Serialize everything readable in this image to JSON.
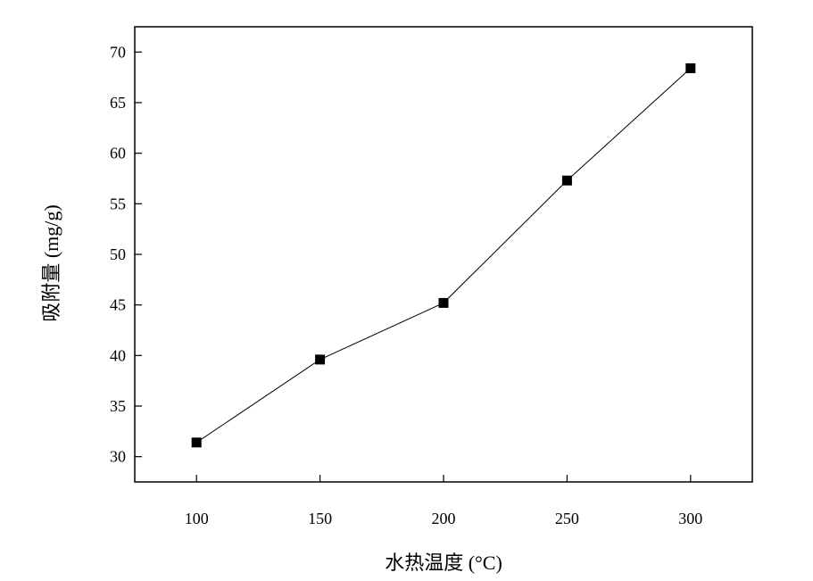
{
  "chart_data": {
    "type": "line",
    "title": "",
    "xlabel": "水热温度 (°C)",
    "ylabel": "吸附量 (mg/g)",
    "x": [
      100,
      150,
      200,
      250,
      300
    ],
    "series": [
      {
        "values": [
          31.4,
          39.6,
          45.2,
          57.3,
          68.4
        ],
        "marker": "square",
        "color": "#000000"
      }
    ],
    "xlim": [
      75,
      325
    ],
    "ylim": [
      27.5,
      72.5
    ],
    "xticks": [
      100,
      150,
      200,
      250,
      300
    ],
    "yticks": [
      30,
      35,
      40,
      45,
      50,
      55,
      60,
      65,
      70
    ],
    "grid": false,
    "legend": "none"
  }
}
